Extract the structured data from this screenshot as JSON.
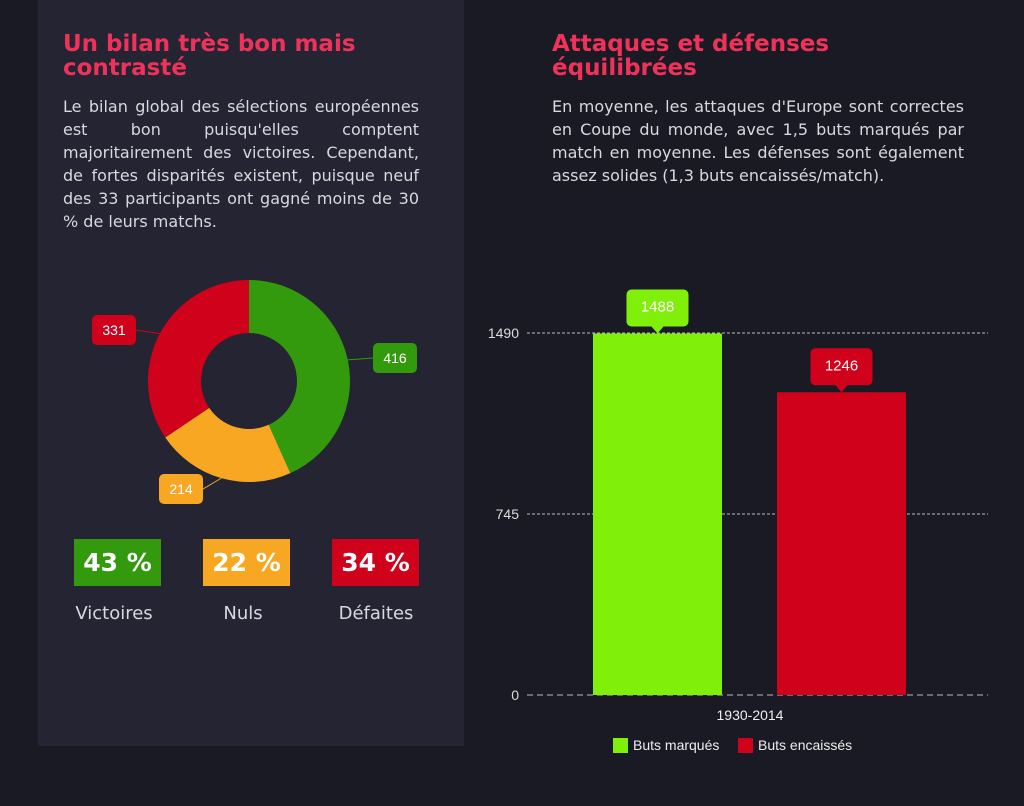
{
  "left": {
    "title": "Un bilan très bon mais contrasté",
    "text": "Le bilan global des sélections européennes est bon puisqu'elles comptent majoritairement des victoires. Cependant, de fortes disparités existent, puisque neuf des 33 participants ont gagné moins de 30 % de leurs matchs.",
    "stats": [
      {
        "pct": "43 %",
        "label": "Victoires",
        "color": "#339a0e"
      },
      {
        "pct": "22 %",
        "label": "Nuls",
        "color": "#f8a723"
      },
      {
        "pct": "34 %",
        "label": "Défaites",
        "color": "#d0021b"
      }
    ]
  },
  "right": {
    "title": "Attaques et défenses équilibrées",
    "text": "En moyenne, les attaques d'Europe sont correctes en Coupe du monde, avec 1,5 buts marqués par match en moyenne. Les défenses sont également assez solides (1,3 buts encaissés/match)."
  },
  "chart_data": [
    {
      "type": "pie",
      "variant": "donut",
      "categories": [
        "Victoires",
        "Nuls",
        "Défaites"
      ],
      "values": [
        416,
        214,
        331
      ],
      "colors": [
        "#339a0e",
        "#f8a723",
        "#d0021b"
      ]
    },
    {
      "type": "bar",
      "categories": [
        "1930-2014"
      ],
      "series": [
        {
          "name": "Buts marqués",
          "values": [
            1488
          ],
          "color": "#80f00a"
        },
        {
          "name": "Buts encaissés",
          "values": [
            1246
          ],
          "color": "#d0021b"
        }
      ],
      "yticks": [
        0,
        745,
        1490
      ],
      "ylim": [
        0,
        1490
      ],
      "grid": true,
      "legend": "bottom"
    }
  ]
}
